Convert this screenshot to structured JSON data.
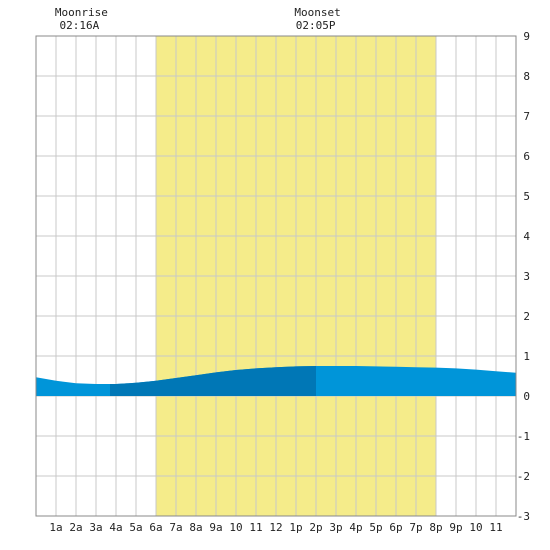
{
  "chart_data": {
    "type": "area",
    "title": "",
    "xlabel": "",
    "ylabel": "",
    "x_range": [
      0,
      24
    ],
    "y_range": [
      -3,
      9
    ],
    "grid": true,
    "x_tick_labels": [
      "1a",
      "2a",
      "3a",
      "4a",
      "5a",
      "6a",
      "7a",
      "8a",
      "9a",
      "10",
      "11",
      "12",
      "1p",
      "2p",
      "3p",
      "4p",
      "5p",
      "6p",
      "7p",
      "8p",
      "9p",
      "10",
      "11"
    ],
    "y_ticks": [
      9,
      8,
      7,
      6,
      5,
      4,
      3,
      2,
      1,
      0,
      -1,
      -2,
      -3
    ],
    "daylight": {
      "start_hour": 6,
      "end_hour": 20,
      "color": "#f5ec8a"
    },
    "shade_band": {
      "start_hour": 3.7,
      "end_hour": 14,
      "color": "#0077b6"
    },
    "tide_color": "#0095d9",
    "tide_series": {
      "x": [
        0,
        1,
        2,
        3,
        4,
        5,
        6,
        7,
        8,
        9,
        10,
        11,
        12,
        13,
        14,
        15,
        16,
        17,
        18,
        19,
        20,
        21,
        22,
        23,
        24
      ],
      "y": [
        0.47,
        0.38,
        0.32,
        0.3,
        0.3,
        0.33,
        0.38,
        0.45,
        0.52,
        0.59,
        0.65,
        0.69,
        0.72,
        0.74,
        0.75,
        0.75,
        0.75,
        0.74,
        0.73,
        0.72,
        0.71,
        0.69,
        0.66,
        0.62,
        0.58
      ]
    },
    "annotations": [
      {
        "label": "Moonrise",
        "time": "02:16A",
        "hour": 2.27
      },
      {
        "label": "Moonset",
        "time": "02:05P",
        "hour": 14.08
      }
    ]
  }
}
